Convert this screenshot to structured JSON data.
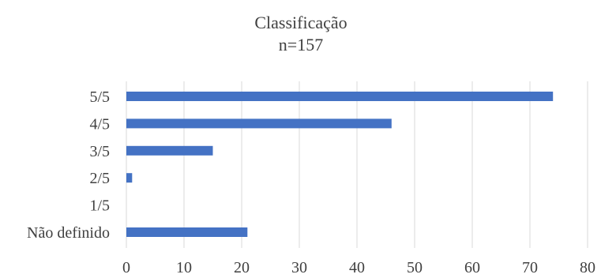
{
  "chart_data": {
    "type": "bar",
    "orientation": "horizontal",
    "title": "Classificação",
    "subtitle": "n=157",
    "categories": [
      "5/5",
      "4/5",
      "3/5",
      "2/5",
      "1/5",
      "Não definido"
    ],
    "values": [
      74,
      46,
      15,
      1,
      0,
      21
    ],
    "xlim": [
      0,
      80
    ],
    "xticks": [
      0,
      10,
      20,
      30,
      40,
      50,
      60,
      70,
      80
    ],
    "grid": "vertical",
    "legend": "none",
    "colors": {
      "bar": "#4472c4",
      "grid": "#d9d9d9",
      "text": "#404040"
    }
  }
}
